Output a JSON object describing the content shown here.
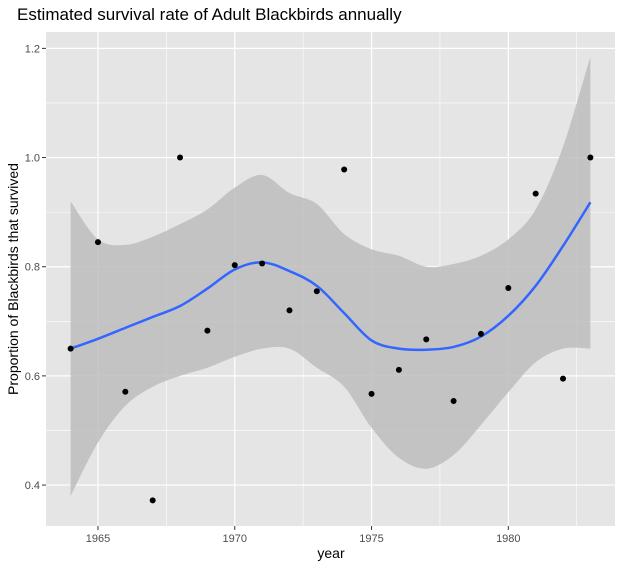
{
  "chart_data": {
    "type": "scatter",
    "title": "Estimated survival rate of Adult Blackbirds annually",
    "xlabel": "year",
    "ylabel": "Proportion of Blackbirds that survived",
    "xlim": [
      1963.1,
      1983.9
    ],
    "ylim": [
      0.325,
      1.23
    ],
    "x_ticks": [
      1965,
      1970,
      1975,
      1980
    ],
    "y_ticks": [
      0.4,
      0.6,
      0.8,
      1.0,
      1.2
    ],
    "x_tick_labels": [
      "1965",
      "1970",
      "1975",
      "1980"
    ],
    "y_tick_labels": [
      "0.4",
      "0.6",
      "0.8",
      "1.0",
      "1.2"
    ],
    "grid": true,
    "colors": {
      "panel": "#e5e5e5",
      "grid": "#ffffff",
      "points": "#000000",
      "smooth_line": "#3366ff",
      "confidence_band": "#bdbdbd"
    },
    "points": [
      {
        "x": 1964,
        "y": 0.65
      },
      {
        "x": 1965,
        "y": 0.845
      },
      {
        "x": 1966,
        "y": 0.571
      },
      {
        "x": 1967,
        "y": 0.372
      },
      {
        "x": 1968,
        "y": 1.0
      },
      {
        "x": 1969,
        "y": 0.683
      },
      {
        "x": 1970,
        "y": 0.803
      },
      {
        "x": 1971,
        "y": 0.806
      },
      {
        "x": 1972,
        "y": 0.72
      },
      {
        "x": 1973,
        "y": 0.755
      },
      {
        "x": 1974,
        "y": 0.978
      },
      {
        "x": 1975,
        "y": 0.567
      },
      {
        "x": 1976,
        "y": 0.611
      },
      {
        "x": 1977,
        "y": 0.667
      },
      {
        "x": 1978,
        "y": 0.554
      },
      {
        "x": 1979,
        "y": 0.677
      },
      {
        "x": 1980,
        "y": 0.761
      },
      {
        "x": 1981,
        "y": 0.934
      },
      {
        "x": 1982,
        "y": 0.595
      },
      {
        "x": 1983,
        "y": 1.0
      }
    ],
    "smooth": {
      "name": "loess fit",
      "x": [
        1964,
        1965,
        1966,
        1967,
        1968,
        1969,
        1970,
        1971,
        1972,
        1973,
        1974,
        1975,
        1976,
        1977,
        1978,
        1979,
        1980,
        1981,
        1982,
        1983
      ],
      "y": [
        0.65,
        0.668,
        0.688,
        0.708,
        0.728,
        0.76,
        0.795,
        0.808,
        0.792,
        0.765,
        0.715,
        0.665,
        0.65,
        0.648,
        0.653,
        0.672,
        0.71,
        0.765,
        0.838,
        0.918
      ],
      "lower": [
        0.38,
        0.478,
        0.545,
        0.58,
        0.6,
        0.615,
        0.635,
        0.65,
        0.65,
        0.615,
        0.58,
        0.505,
        0.45,
        0.43,
        0.455,
        0.51,
        0.57,
        0.625,
        0.65,
        0.65
      ],
      "upper": [
        0.92,
        0.85,
        0.84,
        0.855,
        0.878,
        0.905,
        0.945,
        0.968,
        0.935,
        0.915,
        0.86,
        0.832,
        0.82,
        0.8,
        0.805,
        0.82,
        0.85,
        0.905,
        1.02,
        1.185
      ]
    }
  }
}
